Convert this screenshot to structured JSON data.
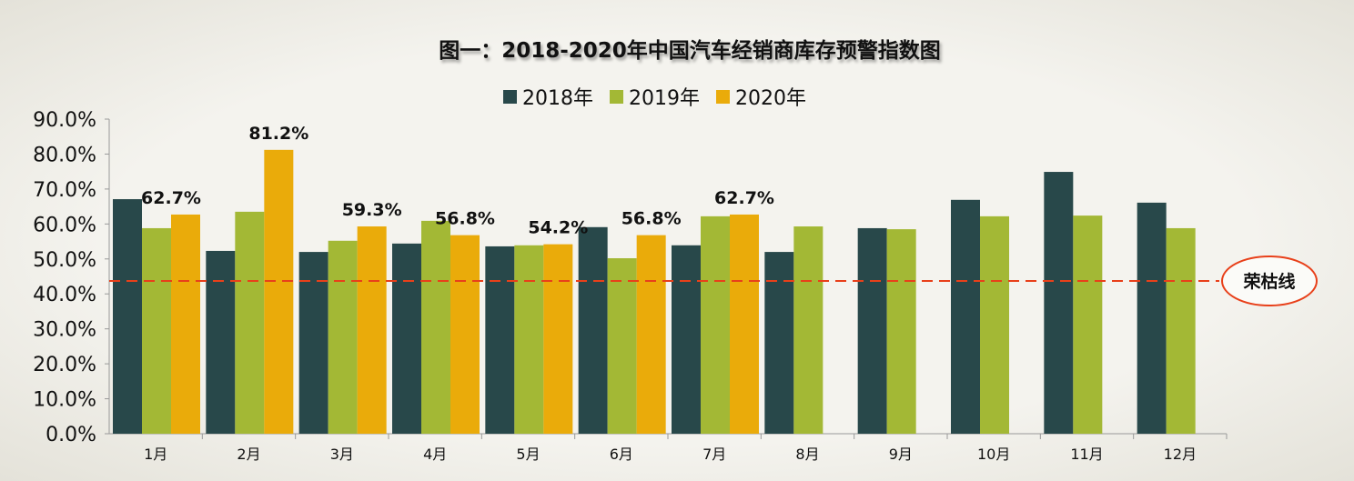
{
  "chart_data": {
    "type": "bar",
    "title": "图一：2018-2020年中国汽车经销商库存预警指数图",
    "categories": [
      "1月",
      "2月",
      "3月",
      "4月",
      "5月",
      "6月",
      "7月",
      "8月",
      "9月",
      "10月",
      "11月",
      "12月"
    ],
    "series": [
      {
        "name": "2018年",
        "color": "#28484a",
        "values": [
          67.1,
          52.3,
          52.0,
          54.4,
          53.6,
          59.1,
          53.9,
          52.0,
          58.8,
          66.9,
          74.9,
          66.1
        ]
      },
      {
        "name": "2019年",
        "color": "#a3b835",
        "values": [
          58.8,
          63.5,
          55.2,
          60.9,
          53.9,
          50.2,
          62.2,
          59.3,
          58.5,
          62.2,
          62.4,
          58.8
        ]
      },
      {
        "name": "2020年",
        "color": "#eaab0a",
        "values": [
          62.7,
          81.2,
          59.3,
          56.8,
          54.2,
          56.8,
          62.7,
          null,
          null,
          null,
          null,
          null
        ]
      }
    ],
    "data_labels": [
      "62.7%",
      "81.2%",
      "59.3%",
      "56.8%",
      "54.2%",
      "56.8%",
      "62.7%"
    ],
    "yticks": [
      "0.0%",
      "10.0%",
      "20.0%",
      "30.0%",
      "40.0%",
      "50.0%",
      "60.0%",
      "70.0%",
      "80.0%",
      "90.0%"
    ],
    "ylim": [
      0,
      90
    ],
    "reference_line": {
      "value": 43.7,
      "label": "荣枯线",
      "color": "#e8401a"
    },
    "legend_position": "top",
    "grid": false
  }
}
